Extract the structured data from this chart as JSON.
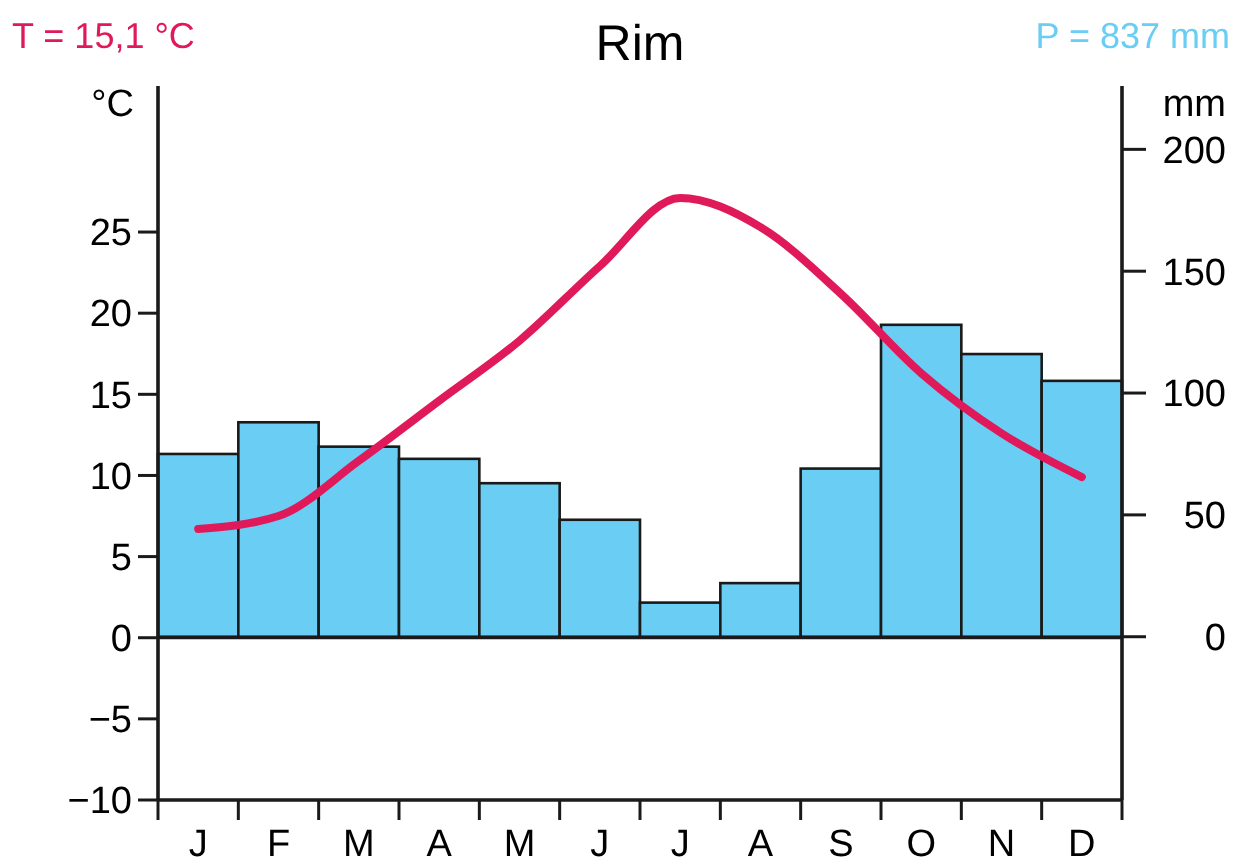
{
  "chart_data": {
    "type": "bar",
    "title": "Rim",
    "ylabel": "°C",
    "y2label": "mm",
    "annotations": [
      "T = 15,1 °C",
      "P = 837 mm"
    ],
    "categories": [
      "J",
      "F",
      "M",
      "A",
      "M",
      "J",
      "J",
      "A",
      "S",
      "O",
      "N",
      "D"
    ],
    "series": [
      {
        "type": "line",
        "axis": "y",
        "color": "#e0195a",
        "values": [
          6.7,
          7.5,
          10.9,
          14.6,
          18.3,
          22.9,
          27.1,
          25.3,
          21.2,
          16.3,
          12.6,
          9.9
        ]
      },
      {
        "axis": "y2",
        "color": "#6acdf3",
        "values": [
          75,
          88,
          78,
          73,
          63,
          48,
          14,
          22,
          69,
          128,
          116,
          105
        ]
      }
    ],
    "ylim": [
      -10,
      34
    ],
    "yticks": [
      -10,
      -5,
      0,
      5,
      10,
      15,
      20,
      25
    ],
    "y2lim": [
      -67,
      226
    ],
    "y2ticks": [
      0,
      50,
      100,
      150,
      200
    ],
    "marker": "none",
    "line_style": "solid"
  }
}
